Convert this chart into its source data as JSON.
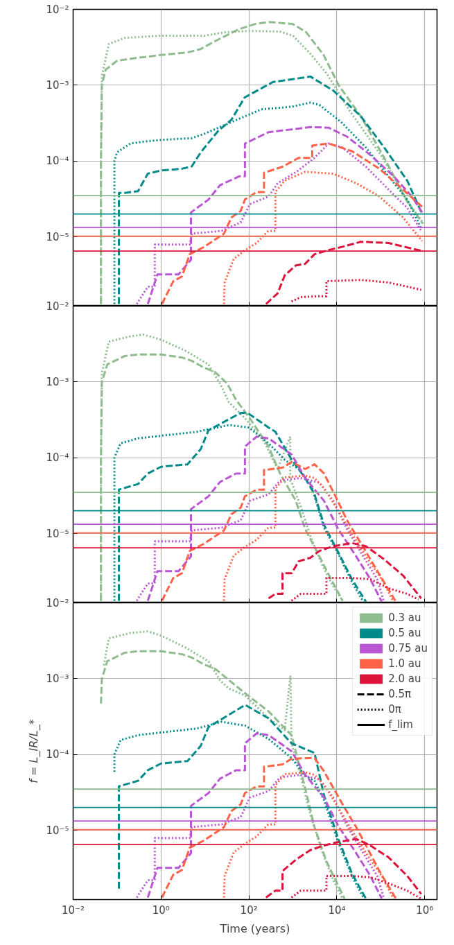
{
  "chart_data": [
    {
      "type": "line",
      "log": "xy",
      "grid": true,
      "tick_labels": "y",
      "xlim": [
        0.01,
        1900000
      ],
      "ylim": [
        1.22e-06,
        0.01
      ],
      "xticks": [
        {
          "value": 0.01,
          "label": null
        },
        {
          "value": 1,
          "label": null
        },
        {
          "value": 100,
          "label": null
        },
        {
          "value": 10000,
          "label": null
        },
        {
          "value": 1000000,
          "label": null
        }
      ],
      "yticks": [
        {
          "value": 0.01,
          "label": "10⁻²"
        },
        {
          "value": 0.001,
          "label": "10⁻³"
        },
        {
          "value": 0.0001,
          "label": "10⁻⁴"
        },
        {
          "value": 1e-05,
          "label": "10⁻⁵"
        }
      ],
      "series": [
        {
          "color": "#8fbc8f",
          "line_style": "dashed",
          "x": [
            0.043,
            0.043,
            0.045,
            0.055,
            0.1,
            0.3,
            1,
            4,
            8,
            20,
            60,
            150,
            300,
            1000,
            2000,
            5000,
            11000,
            35000,
            120000,
            400000,
            900000
          ],
          "values": [
            1.3e-06,
            0.0001,
            0.001,
            0.0016,
            0.0021,
            0.0023,
            0.0025,
            0.0027,
            0.003,
            0.004,
            0.0055,
            0.0065,
            0.0068,
            0.0064,
            0.005,
            0.0025,
            0.001,
            0.00039,
            0.00011,
            2.9e-05,
            1.5e-05
          ]
        },
        {
          "color": "#8fbc8f",
          "line_style": "dotted",
          "x": [
            0.043,
            0.043,
            0.045,
            0.065,
            0.15,
            1,
            10,
            30,
            100,
            500,
            1000,
            2500,
            6000,
            20000,
            100000,
            400000,
            930000
          ],
          "values": [
            1.3e-06,
            0.0001,
            0.0013,
            0.0035,
            0.0042,
            0.0045,
            0.0045,
            0.005,
            0.0052,
            0.0051,
            0.0045,
            0.0026,
            0.0014,
            0.00045,
            0.00012,
            3e-05,
            1.5e-05
          ]
        },
        {
          "color": "#008b8b",
          "line_style": "dashed",
          "x": [
            0.11,
            0.11,
            0.15,
            0.3,
            0.5,
            1,
            3,
            5,
            8,
            20,
            40,
            80,
            350,
            2500,
            8300,
            35000,
            120000,
            400000,
            870000
          ],
          "values": [
            1.3e-06,
            3.8e-05,
            3.8e-05,
            4e-05,
            6.8e-05,
            7.5e-05,
            7.9e-05,
            8.5e-05,
            0.00013,
            0.00025,
            0.00035,
            0.00069,
            0.0011,
            0.0013,
            0.00085,
            0.00039,
            0.00015,
            5.5e-05,
            2e-05
          ]
        },
        {
          "color": "#008b8b",
          "line_style": "dotted",
          "x": [
            0.087,
            0.087,
            0.1,
            0.2,
            0.4,
            1,
            5,
            10,
            25,
            190,
            940,
            2500,
            4000,
            13000,
            46000,
            150000,
            400000,
            830000
          ],
          "values": [
            1.3e-06,
            0.0001,
            0.00013,
            0.00017,
            0.00018,
            0.00019,
            0.0002,
            0.00023,
            0.00029,
            0.00048,
            0.00052,
            0.00059,
            0.00055,
            0.00032,
            0.00015,
            6.3e-05,
            3.1e-05,
            1.3e-05
          ]
        },
        {
          "color": "#ba55d3",
          "line_style": "dashed",
          "x": [
            0.5,
            0.83,
            2.5,
            4.8,
            4.8,
            12,
            22,
            61,
            81,
            81,
            280,
            2500,
            6500,
            17000,
            58000,
            195000,
            510000,
            870000
          ],
          "values": [
            1.3e-06,
            3.2e-06,
            3.2e-06,
            5e-06,
            2.1e-05,
            3.1e-05,
            4.8e-05,
            6.3e-05,
            6.3e-05,
            0.00017,
            0.00024,
            0.00028,
            0.000275,
            0.00021,
            0.00012,
            6.3e-05,
            3.4e-05,
            2.1e-05
          ]
        },
        {
          "color": "#ba55d3",
          "line_style": "dotted",
          "x": [
            0.28,
            0.5,
            0.72,
            0.72,
            4.5,
            5,
            24,
            65,
            105,
            280,
            450,
            1200,
            3100,
            6500,
            13500,
            46000,
            150000,
            400000,
            830000
          ],
          "values": [
            1.3e-06,
            2.2e-06,
            2.2e-06,
            7.9e-06,
            7.9e-06,
            1.1e-05,
            1.2e-05,
            1.55e-05,
            2.7e-05,
            3.4e-05,
            5.1e-05,
            7.2e-05,
            0.00011,
            0.00017,
            0.00015,
            8.4e-05,
            4.2e-05,
            2.4e-05,
            1.2e-05
          ]
        },
        {
          "color": "#ff6347",
          "line_style": "dashed",
          "x": [
            1.05,
            1.9,
            3,
            4.5,
            9.3,
            27,
            40,
            65,
            81,
            150,
            220,
            220,
            580,
            1350,
            2750,
            2750,
            6500,
            22000,
            93000,
            320000,
            870000
          ],
          "values": [
            1.3e-06,
            2.6e-06,
            3e-06,
            5.9e-06,
            7.3e-06,
            1.1e-05,
            1.8e-05,
            2.2e-05,
            3.1e-05,
            3.9e-05,
            3.9e-05,
            7e-05,
            8.4e-05,
            0.00011,
            0.00011,
            0.00016,
            0.00017,
            0.000135,
            7.9e-05,
            4.2e-05,
            2.5e-05
          ]
        },
        {
          "color": "#ff6347",
          "line_style": "dotted",
          "x": [
            27,
            28,
            45,
            82,
            150,
            275,
            400,
            400,
            650,
            1900,
            8300,
            27500,
            93000,
            320000,
            870000
          ],
          "values": [
            1.3e-06,
            2.5e-06,
            5.1e-06,
            6.7e-06,
            8.3e-06,
            1.2e-05,
            1.2e-05,
            3.9e-05,
            5.5e-05,
            7.2e-05,
            6.8e-05,
            5.1e-05,
            3.4e-05,
            1.8e-05,
            8.8e-06
          ]
        },
        {
          "color": "#dc143c",
          "line_style": "dashed",
          "x": [
            245,
            450,
            650,
            1170,
            1900,
            3100,
            6500,
            13500,
            35000,
            150000,
            870000
          ],
          "values": [
            1.3e-06,
            1.8e-06,
            3.1e-06,
            4.2e-06,
            4.4e-06,
            5.9e-06,
            6.7e-06,
            7.4e-06,
            8.6e-06,
            8.3e-06,
            6.5e-06
          ]
        },
        {
          "color": "#dc143c",
          "line_style": "dotted",
          "x": [
            930,
            1500,
            4000,
            5800,
            5800,
            35000,
            150000,
            830000
          ],
          "values": [
            1.4e-06,
            1.6e-06,
            1.65e-06,
            1.65e-06,
            2.6e-06,
            2.7e-06,
            2.5e-06,
            2e-06
          ]
        }
      ],
      "ref_lines": [
        {
          "axis": "y",
          "value": 3.5e-05,
          "color": "#8fbc8f"
        },
        {
          "axis": "y",
          "value": 2e-05,
          "color": "#008b8b"
        },
        {
          "axis": "y",
          "value": 1.33e-05,
          "color": "#ba55d3"
        },
        {
          "axis": "y",
          "value": 1.02e-05,
          "color": "#ff6347"
        },
        {
          "axis": "y",
          "value": 6.5e-06,
          "color": "#dc143c"
        }
      ]
    },
    {
      "type": "line",
      "log": "xy",
      "grid": true,
      "tick_labels": "y",
      "xlim": [
        0.01,
        1900000
      ],
      "ylim": [
        1.22e-06,
        0.01
      ],
      "xticks": [
        {
          "value": 0.01,
          "label": null
        },
        {
          "value": 1,
          "label": null
        },
        {
          "value": 100,
          "label": null
        },
        {
          "value": 10000,
          "label": null
        },
        {
          "value": 1000000,
          "label": null
        }
      ],
      "yticks": [
        {
          "value": 0.01,
          "label": "10⁻²"
        },
        {
          "value": 0.001,
          "label": "10⁻³"
        },
        {
          "value": 0.0001,
          "label": "10⁻⁴"
        },
        {
          "value": 1e-05,
          "label": "10⁻⁵"
        }
      ],
      "series": [
        {
          "color": "#8fbc8f",
          "line_style": "dashed",
          "x": [
            0.043,
            0.043,
            0.045,
            0.06,
            0.15,
            0.3,
            1,
            3,
            5,
            9.3,
            17,
            32,
            51,
            105,
            280,
            510,
            1170,
            1900,
            4000,
            7400,
            13500
          ],
          "values": [
            1.3e-06,
            0.0001,
            0.001,
            0.0017,
            0.0022,
            0.0023,
            0.0023,
            0.0021,
            0.0019,
            0.00155,
            0.00135,
            0.00095,
            0.00058,
            0.00033,
            0.00014,
            6.2e-05,
            2.7e-05,
            1.15e-05,
            5e-06,
            2.5e-06,
            1.3e-06
          ]
        },
        {
          "color": "#8fbc8f",
          "line_style": "dotted",
          "x": [
            0.043,
            0.043,
            0.045,
            0.065,
            0.2,
            0.4,
            1,
            3.5,
            12,
            22,
            35,
            82,
            220,
            450,
            870,
            870,
            940,
            1500,
            2500,
            4500,
            8300,
            13500
          ],
          "values": [
            1.3e-06,
            0.0001,
            0.0013,
            0.0034,
            0.004,
            0.0042,
            0.0036,
            0.0026,
            0.0017,
            0.00095,
            0.00054,
            0.00033,
            0.000165,
            7.1e-05,
            0.00019,
            5e-05,
            4.7e-05,
            2.3e-05,
            9.3e-06,
            4e-06,
            2e-06,
            1.3e-06
          ]
        },
        {
          "color": "#008b8b",
          "line_style": "dashed",
          "x": [
            0.11,
            0.11,
            0.3,
            0.5,
            1,
            4,
            8,
            12,
            65,
            93,
            280,
            400,
            940,
            1900,
            3100,
            5100,
            10700,
            22000,
            46000
          ],
          "values": [
            1.3e-06,
            3.8e-05,
            4.5e-05,
            6.2e-05,
            7.6e-05,
            8.2e-05,
            0.00013,
            0.00023,
            0.00039,
            0.00039,
            0.00025,
            0.00022,
            9.4e-05,
            5.4e-05,
            3.3e-05,
            1.3e-05,
            5.7e-06,
            2.5e-06,
            1.26e-06
          ]
        },
        {
          "color": "#008b8b",
          "line_style": "dotted",
          "x": [
            0.087,
            0.087,
            0.12,
            0.3,
            1,
            6.5,
            35,
            100,
            280,
            650,
            1350,
            2500,
            5100,
            11000,
            22000,
            40000
          ],
          "values": [
            1.3e-06,
            0.0001,
            0.000155,
            0.00018,
            0.000195,
            0.00022,
            0.00027,
            0.00025,
            0.000155,
            9.4e-05,
            7.1e-05,
            4.7e-05,
            1.2e-05,
            5.3e-06,
            2.3e-06,
            1.26e-06
          ]
        },
        {
          "color": "#ba55d3",
          "line_style": "dashed",
          "x": [
            0.5,
            0.83,
            2.5,
            4.8,
            4.8,
            12,
            22,
            51,
            81,
            81,
            150,
            280,
            940,
            1900,
            5100,
            10700,
            27500,
            58000,
            105000
          ],
          "values": [
            1.3e-06,
            3.2e-06,
            3.2e-06,
            5e-06,
            2.1e-05,
            3.1e-05,
            4.8e-05,
            6.2e-05,
            6.2e-05,
            0.00014,
            0.00019,
            0.00018,
            0.00011,
            5.4e-05,
            2.7e-05,
            1.15e-05,
            5e-06,
            2.5e-06,
            1.26e-06
          ]
        },
        {
          "color": "#ba55d3",
          "line_style": "dotted",
          "x": [
            0.28,
            0.5,
            0.72,
            0.72,
            4.5,
            5,
            24,
            65,
            105,
            280,
            510,
            1500,
            4000,
            8300,
            17000,
            40000,
            83000,
            118000
          ],
          "values": [
            1.3e-06,
            2.2e-06,
            2.2e-06,
            7.9e-06,
            7.9e-06,
            1.1e-05,
            1.2e-05,
            1.5e-05,
            2.7e-05,
            3.3e-05,
            5e-05,
            5.4e-05,
            4.7e-05,
            2.7e-05,
            1.15e-05,
            5e-06,
            2.5e-06,
            1.26e-06
          ]
        },
        {
          "color": "#ff6347",
          "line_style": "dashed",
          "x": [
            1.05,
            1.9,
            3,
            4.5,
            9.3,
            27,
            40,
            65,
            81,
            150,
            220,
            220,
            580,
            940,
            1900,
            3100,
            5100,
            9300,
            17000,
            35000,
            72000,
            220000
          ],
          "values": [
            1.3e-06,
            2.6e-06,
            3e-06,
            5.9e-06,
            7.3e-06,
            1.1e-05,
            1.8e-05,
            2.2e-05,
            3.1e-05,
            3.8e-05,
            3.8e-05,
            6.9e-05,
            7.4e-05,
            8.8e-05,
            7.1e-05,
            8.2e-05,
            6.2e-05,
            3.1e-05,
            1.5e-05,
            7.5e-06,
            3.7e-06,
            1.26e-06
          ]
        },
        {
          "color": "#ff6347",
          "line_style": "dotted",
          "x": [
            27,
            28,
            45,
            82,
            150,
            275,
            400,
            400,
            650,
            1900,
            3100,
            5100,
            10700,
            22000,
            46000,
            105000,
            195000
          ],
          "values": [
            1.3e-06,
            2.5e-06,
            5.1e-06,
            6.7e-06,
            8.3e-06,
            1.2e-05,
            1.2e-05,
            3.9e-05,
            5.5e-05,
            5.8e-05,
            5.4e-05,
            4e-05,
            2e-05,
            1e-05,
            5e-06,
            2.5e-06,
            1.26e-06
          ]
        },
        {
          "color": "#dc143c",
          "line_style": "dashed",
          "x": [
            280,
            400,
            580,
            580,
            940,
            1350,
            2500,
            4000,
            8300,
            22000,
            46000,
            118000,
            320000,
            830000
          ],
          "values": [
            1.4e-06,
            1.6e-06,
            1.6e-06,
            3e-06,
            3e-06,
            4.3e-06,
            4.8e-06,
            5.9e-06,
            6.8e-06,
            7.5e-06,
            6.8e-06,
            4.6e-06,
            2.8e-06,
            1.4e-06
          ]
        },
        {
          "color": "#dc143c",
          "line_style": "dotted",
          "x": [
            930,
            1500,
            4000,
            5800,
            5800,
            22000,
            58000,
            150000,
            400000,
            720000
          ],
          "values": [
            1.3e-06,
            1.6e-06,
            1.6e-06,
            1.6e-06,
            2.6e-06,
            2.6e-06,
            2.5e-06,
            1.9e-06,
            1.6e-06,
            1.35e-06
          ]
        }
      ],
      "ref_lines": [
        {
          "axis": "y",
          "value": 3.5e-05,
          "color": "#8fbc8f"
        },
        {
          "axis": "y",
          "value": 2e-05,
          "color": "#008b8b"
        },
        {
          "axis": "y",
          "value": 1.33e-05,
          "color": "#ba55d3"
        },
        {
          "axis": "y",
          "value": 1.02e-05,
          "color": "#ff6347"
        },
        {
          "axis": "y",
          "value": 6.5e-06,
          "color": "#dc143c"
        }
      ]
    },
    {
      "type": "line",
      "log": "xy",
      "grid": true,
      "legend": "top right",
      "xlabel": "Time (years)",
      "ylabel": "f = L_IR/L_*",
      "annotations": [
        "0.5π",
        "0π",
        "f_lim"
      ],
      "xlim": [
        0.01,
        1900000
      ],
      "ylim": [
        1.22e-06,
        0.01
      ],
      "xticks": [
        {
          "value": 0.01,
          "label": "10⁻²"
        },
        {
          "value": 1,
          "label": "10⁰"
        },
        {
          "value": 100,
          "label": "10²"
        },
        {
          "value": 10000,
          "label": "10⁴"
        },
        {
          "value": 1000000,
          "label": "10⁶"
        }
      ],
      "yticks": [
        {
          "value": 0.01,
          "label": "10⁻²"
        },
        {
          "value": 0.001,
          "label": "10⁻³"
        },
        {
          "value": 0.0001,
          "label": "10⁻⁴"
        },
        {
          "value": 1e-05,
          "label": "10⁻⁵"
        }
      ],
      "series": [
        {
          "name": "0.3 au",
          "color": "#8fbc8f",
          "line_style": "dashed",
          "x": [
            0.043,
            0.045,
            0.06,
            0.15,
            0.3,
            1,
            3,
            5,
            9.3,
            17,
            32,
            82,
            280,
            930,
            1900,
            3100,
            5800,
            15000
          ],
          "values": [
            0.00047,
            0.001,
            0.0017,
            0.0022,
            0.0023,
            0.0023,
            0.0021,
            0.0019,
            0.00155,
            0.00135,
            0.001,
            0.00064,
            0.00037,
            0.00018,
            3.6e-05,
            1.1e-05,
            3.9e-06,
            1.25e-06
          ]
        },
        {
          "color": "#8fbc8f",
          "line_style": "dotted",
          "x": [
            0.05,
            0.065,
            0.2,
            0.5,
            1,
            3.5,
            12,
            22,
            35,
            82,
            280,
            650,
            880,
            930,
            1500,
            2500,
            4500,
            8300,
            13500
          ],
          "values": [
            0.0015,
            0.0034,
            0.004,
            0.0042,
            0.0037,
            0.0026,
            0.0017,
            0.00095,
            0.00074,
            0.0006,
            0.0003,
            0.00021,
            0.0011,
            0.00014,
            5.2e-05,
            1.6e-05,
            5.5e-06,
            2.2e-06,
            1.25e-06
          ]
        },
        {
          "name": "0.5 au",
          "color": "#008b8b",
          "line_style": "dashed",
          "x": [
            0.11,
            0.11,
            0.3,
            0.5,
            1,
            4,
            8,
            12,
            82,
            280,
            930,
            3100,
            5100,
            10700,
            22000,
            46000
          ],
          "values": [
            1.7e-06,
            3.8e-05,
            4.5e-05,
            6.2e-05,
            7.6e-05,
            8.2e-05,
            0.00013,
            0.00023,
            0.00045,
            0.0003,
            0.00014,
            0.000105,
            2.9e-05,
            7.8e-06,
            2.7e-06,
            1.25e-06
          ]
        },
        {
          "color": "#008b8b",
          "line_style": "dotted",
          "x": [
            0.087,
            0.087,
            0.12,
            0.3,
            1,
            6.5,
            24,
            82,
            280,
            930,
            1900,
            3100,
            5100,
            10700,
            22000,
            40000
          ],
          "values": [
            5.9e-05,
            0.0001,
            0.000155,
            0.00018,
            0.000195,
            0.00022,
            0.00027,
            0.00024,
            0.00016,
            9e-05,
            5.2e-05,
            4.5e-05,
            2.5e-05,
            7e-06,
            2.5e-06,
            1.3e-06
          ]
        },
        {
          "name": "0.75 au",
          "color": "#ba55d3",
          "line_style": "dashed",
          "x": [
            0.5,
            0.83,
            2.5,
            4.8,
            4.8,
            12,
            22,
            51,
            81,
            81,
            150,
            280,
            940,
            1900,
            5100,
            10700,
            27500,
            58000,
            105000
          ],
          "values": [
            1.3e-06,
            3.2e-06,
            3.2e-06,
            5e-06,
            2.1e-05,
            3.1e-05,
            4.8e-05,
            6.2e-05,
            6.2e-05,
            0.00014,
            0.00019,
            0.00018,
            0.00011,
            5.4e-05,
            2.7e-05,
            1.15e-05,
            5e-06,
            2.5e-06,
            1.26e-06
          ]
        },
        {
          "color": "#ba55d3",
          "line_style": "dotted",
          "x": [
            0.28,
            0.5,
            0.72,
            0.72,
            4.5,
            5,
            24,
            65,
            105,
            280,
            510,
            1500,
            4000,
            8300,
            17000,
            40000,
            83000,
            118000
          ],
          "values": [
            1.3e-06,
            2.2e-06,
            2.2e-06,
            7.9e-06,
            7.9e-06,
            1.1e-05,
            1.2e-05,
            1.5e-05,
            2.7e-05,
            3.3e-05,
            5e-05,
            5.4e-05,
            4.7e-05,
            2.7e-05,
            1.15e-05,
            5e-06,
            2.5e-06,
            1.26e-06
          ]
        },
        {
          "name": "1.0 au",
          "color": "#ff6347",
          "line_style": "dashed",
          "x": [
            1.05,
            1.9,
            3,
            4.5,
            9.3,
            27,
            40,
            65,
            81,
            150,
            220,
            220,
            580,
            940,
            3100,
            5100,
            13500,
            27500,
            46000,
            93000,
            220000
          ],
          "values": [
            1.3e-06,
            2.6e-06,
            3e-06,
            5.9e-06,
            7.3e-06,
            1.1e-05,
            1.8e-05,
            2.2e-05,
            3.1e-05,
            3.8e-05,
            3.8e-05,
            6.9e-05,
            7.4e-05,
            8.8e-05,
            9e-05,
            6e-05,
            2.2e-05,
            1.1e-05,
            6.3e-06,
            2.9e-06,
            1.26e-06
          ]
        },
        {
          "color": "#ff6347",
          "line_style": "dotted",
          "x": [
            27,
            28,
            45,
            82,
            150,
            275,
            400,
            400,
            650,
            1900,
            3100,
            5100,
            10700,
            22000,
            46000,
            105000,
            195000
          ],
          "values": [
            1.3e-06,
            2.5e-06,
            5.1e-06,
            6.7e-06,
            8.3e-06,
            1.2e-05,
            1.2e-05,
            3.9e-05,
            5.5e-05,
            5.8e-05,
            5.4e-05,
            4e-05,
            2e-05,
            1e-05,
            5e-06,
            2.5e-06,
            1.26e-06
          ]
        },
        {
          "name": "2.0 au",
          "color": "#dc143c",
          "line_style": "dashed",
          "x": [
            245,
            400,
            580,
            580,
            1170,
            2500,
            5100,
            10700,
            27500,
            58000,
            150000,
            400000,
            830000
          ],
          "values": [
            1.3e-06,
            1.6e-06,
            1.6e-06,
            2.9e-06,
            4.1e-06,
            5.5e-06,
            6.3e-06,
            7e-06,
            7.7e-06,
            6.3e-06,
            4.4e-06,
            2.5e-06,
            1.45e-06
          ]
        },
        {
          "color": "#dc143c",
          "line_style": "dotted",
          "x": [
            930,
            1500,
            4000,
            5800,
            5800,
            22000,
            58000,
            150000,
            400000,
            830000
          ],
          "values": [
            1.3e-06,
            1.6e-06,
            1.6e-06,
            1.6e-06,
            2.5e-06,
            2.5e-06,
            2.4e-06,
            2e-06,
            1.6e-06,
            1.25e-06
          ]
        }
      ],
      "ref_lines": [
        {
          "axis": "y",
          "value": 3.5e-05,
          "color": "#8fbc8f"
        },
        {
          "axis": "y",
          "value": 2e-05,
          "color": "#008b8b"
        },
        {
          "axis": "y",
          "value": 1.33e-05,
          "color": "#ba55d3"
        },
        {
          "axis": "y",
          "value": 1.02e-05,
          "color": "#ff6347"
        },
        {
          "axis": "y",
          "value": 6.5e-06,
          "color": "#dc143c"
        }
      ]
    }
  ]
}
